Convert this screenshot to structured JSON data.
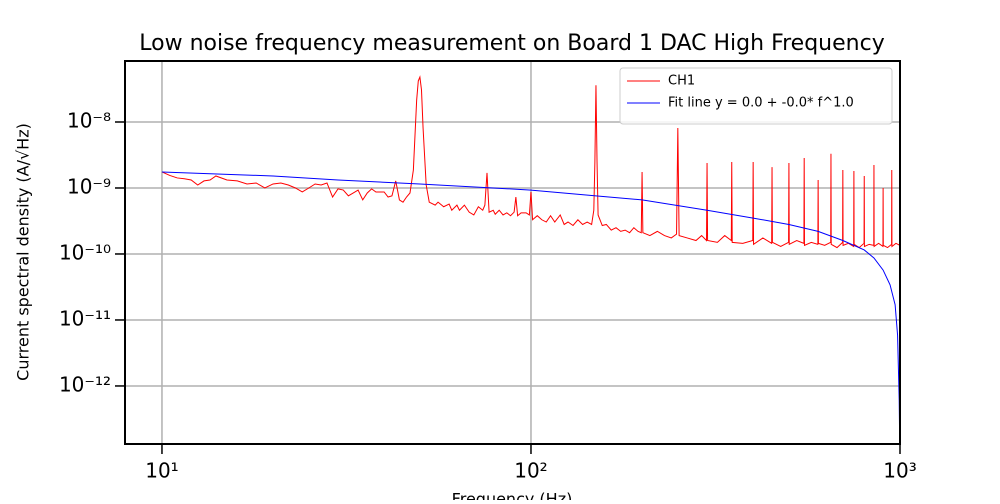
{
  "chart_data": {
    "type": "line",
    "title": "Low noise frequency measurement on Board 1 DAC High Frequency",
    "xlabel": "Frequency (Hz)",
    "ylabel": "Current spectral density (A/√Hz)",
    "xscale": "log",
    "yscale": "log",
    "xlim": [
      7.94,
      1000
    ],
    "ylim": [
      1.32e-13,
      8.4e-08
    ],
    "xticks": [
      {
        "value": 10,
        "label": "10¹"
      },
      {
        "value": 100,
        "label": "10²"
      },
      {
        "value": 1000,
        "label": "10³"
      }
    ],
    "yticks": [
      {
        "value": 1e-12,
        "label": "10⁻¹²"
      },
      {
        "value": 1e-11,
        "label": "10⁻¹¹"
      },
      {
        "value": 1e-10,
        "label": "10⁻¹⁰"
      },
      {
        "value": 1e-09,
        "label": "10⁻⁹"
      },
      {
        "value": 1e-08,
        "label": "10⁻⁸"
      }
    ],
    "grid": true,
    "legend": "upper right",
    "series": [
      {
        "name": "CH1",
        "color": "#ff0000",
        "x": [
          10,
          10.5,
          11,
          11.5,
          12,
          12.5,
          13,
          13.5,
          14,
          15,
          16,
          17,
          18,
          19,
          20,
          21,
          22,
          23,
          24,
          25,
          26,
          27,
          28,
          29,
          30,
          31,
          32,
          33,
          34,
          35,
          36,
          37,
          38,
          40,
          41,
          42,
          43,
          44,
          45,
          46,
          47,
          48,
          49,
          49.5,
          50,
          50.5,
          51,
          52,
          53,
          55,
          56,
          58,
          60,
          61,
          63,
          64,
          66,
          68,
          70,
          72,
          74,
          75,
          76,
          77,
          79,
          80,
          82,
          84,
          86,
          88,
          90,
          91,
          92,
          94,
          97,
          99,
          100,
          101,
          104,
          107,
          110,
          113,
          116,
          120,
          123,
          126,
          130,
          134,
          138,
          142,
          146,
          148,
          149,
          150,
          151,
          152,
          156,
          160,
          165,
          170,
          175,
          180,
          185,
          190,
          195,
          199,
          200,
          201,
          210,
          220,
          230,
          240,
          248,
          250,
          252,
          265,
          280,
          290,
          299,
          300,
          301,
          320,
          335,
          349,
          350,
          351,
          375,
          399,
          400,
          401,
          425,
          449,
          450,
          451,
          475,
          499,
          500,
          501,
          525,
          549,
          550,
          551,
          575,
          599,
          600,
          601,
          625,
          649,
          650,
          651,
          675,
          699,
          700,
          701,
          725,
          749,
          750,
          751,
          775,
          799,
          800,
          801,
          825,
          849,
          850,
          851,
          875,
          899,
          900,
          901,
          925,
          949,
          950,
          951,
          975,
          1000
        ],
        "values": [
          1.75e-09,
          1.55e-09,
          1.42e-09,
          1.38e-09,
          1.32e-09,
          1.11e-09,
          1.28e-09,
          1.32e-09,
          1.52e-09,
          1.32e-09,
          1.28e-09,
          1.15e-09,
          1.19e-09,
          1e-09,
          1.15e-09,
          1.19e-09,
          1.11e-09,
          1e-09,
          8.7e-10,
          1e-09,
          1.15e-09,
          1.11e-09,
          1.19e-09,
          7.3e-10,
          9.7e-10,
          9.3e-10,
          7.6e-10,
          8.4e-10,
          9.3e-10,
          6.6e-10,
          8.4e-10,
          9.7e-10,
          8.7e-10,
          8.7e-10,
          7.3e-10,
          7.6e-10,
          1.28e-09,
          6.6e-10,
          6.1e-10,
          7.3e-10,
          8.4e-10,
          1.87e-09,
          2.15e-08,
          4.2e-08,
          4.8e-08,
          3.06e-08,
          8.1e-09,
          1.11e-09,
          6.1e-10,
          5.5e-10,
          6.1e-10,
          5.2e-10,
          5.7e-10,
          4.6e-10,
          5.5e-10,
          4.6e-10,
          5.5e-10,
          4.3e-10,
          3.9e-10,
          5.2e-10,
          4.6e-10,
          5.5e-10,
          1.69e-09,
          4.3e-10,
          4.6e-10,
          4e-10,
          4.6e-10,
          3.9e-10,
          4.2e-10,
          3.8e-10,
          4.3e-10,
          7.3e-10,
          3.8e-10,
          4.2e-10,
          4.2e-10,
          3.9e-10,
          8.7e-10,
          3.3e-10,
          3.8e-10,
          3.3e-10,
          3.05e-10,
          3.8e-10,
          3.05e-10,
          3.9e-10,
          2.8e-10,
          3.05e-10,
          2.7e-10,
          3.3e-10,
          2.8e-10,
          3.05e-10,
          2.8e-10,
          4.6e-10,
          2.5e-09,
          3.6e-08,
          2.5e-09,
          3.9e-10,
          2.7e-10,
          2.8e-10,
          2.3e-10,
          2.5e-10,
          2.2e-10,
          2.3e-10,
          2.1e-10,
          2.5e-10,
          2.2e-10,
          2.1e-10,
          1.75e-09,
          2.1e-10,
          1.9e-10,
          2.2e-10,
          1.9e-10,
          1.75e-10,
          2e-10,
          8.1e-09,
          1.9e-10,
          1.75e-10,
          1.6e-10,
          1.9e-10,
          1.6e-10,
          2.39e-09,
          1.6e-10,
          1.5e-10,
          1.9e-10,
          1.6e-10,
          2.48e-09,
          1.5e-10,
          1.45e-10,
          1.6e-10,
          2.48e-09,
          1.4e-10,
          1.75e-10,
          1.45e-10,
          2.07e-09,
          1.5e-10,
          1.3e-10,
          1.5e-10,
          2.39e-09,
          1.4e-10,
          1.6e-10,
          1.45e-10,
          2.85e-09,
          1.35e-10,
          1.5e-10,
          1.4e-10,
          1.32e-09,
          1.45e-10,
          1.35e-10,
          1.5e-10,
          3.3e-09,
          1.4e-10,
          1.25e-10,
          1.5e-10,
          1.87e-09,
          1.35e-10,
          1.45e-10,
          1.3e-10,
          1.81e-09,
          1.4e-10,
          1.25e-10,
          1.45e-10,
          1.52e-09,
          1.3e-10,
          1.4e-10,
          1.35e-10,
          2.23e-09,
          1.3e-10,
          1.45e-10,
          1.3e-10,
          1e-09,
          1.35e-10,
          1.25e-10,
          1.4e-10,
          1.87e-09,
          1.3e-10,
          1.45e-10,
          1.35e-10
        ]
      },
      {
        "name": "Fit line y = 0.0 + -0.0* f^1.0",
        "color": "#0000ff",
        "x": [
          10,
          20,
          30,
          50,
          100,
          150,
          200,
          300,
          400,
          500,
          600,
          700,
          800,
          850,
          900,
          940,
          970,
          985,
          995,
          998
        ],
        "values": [
          1.75e-09,
          1.52e-09,
          1.32e-09,
          1.15e-09,
          9.3e-10,
          7.6e-10,
          6.6e-10,
          4.6e-10,
          3.5e-10,
          2.8e-10,
          2.2e-10,
          1.6e-10,
          1.15e-10,
          8.7e-11,
          5.7e-11,
          3.4e-11,
          1.7e-11,
          5.9e-12,
          6e-13,
          1.5e-13
        ]
      }
    ]
  }
}
